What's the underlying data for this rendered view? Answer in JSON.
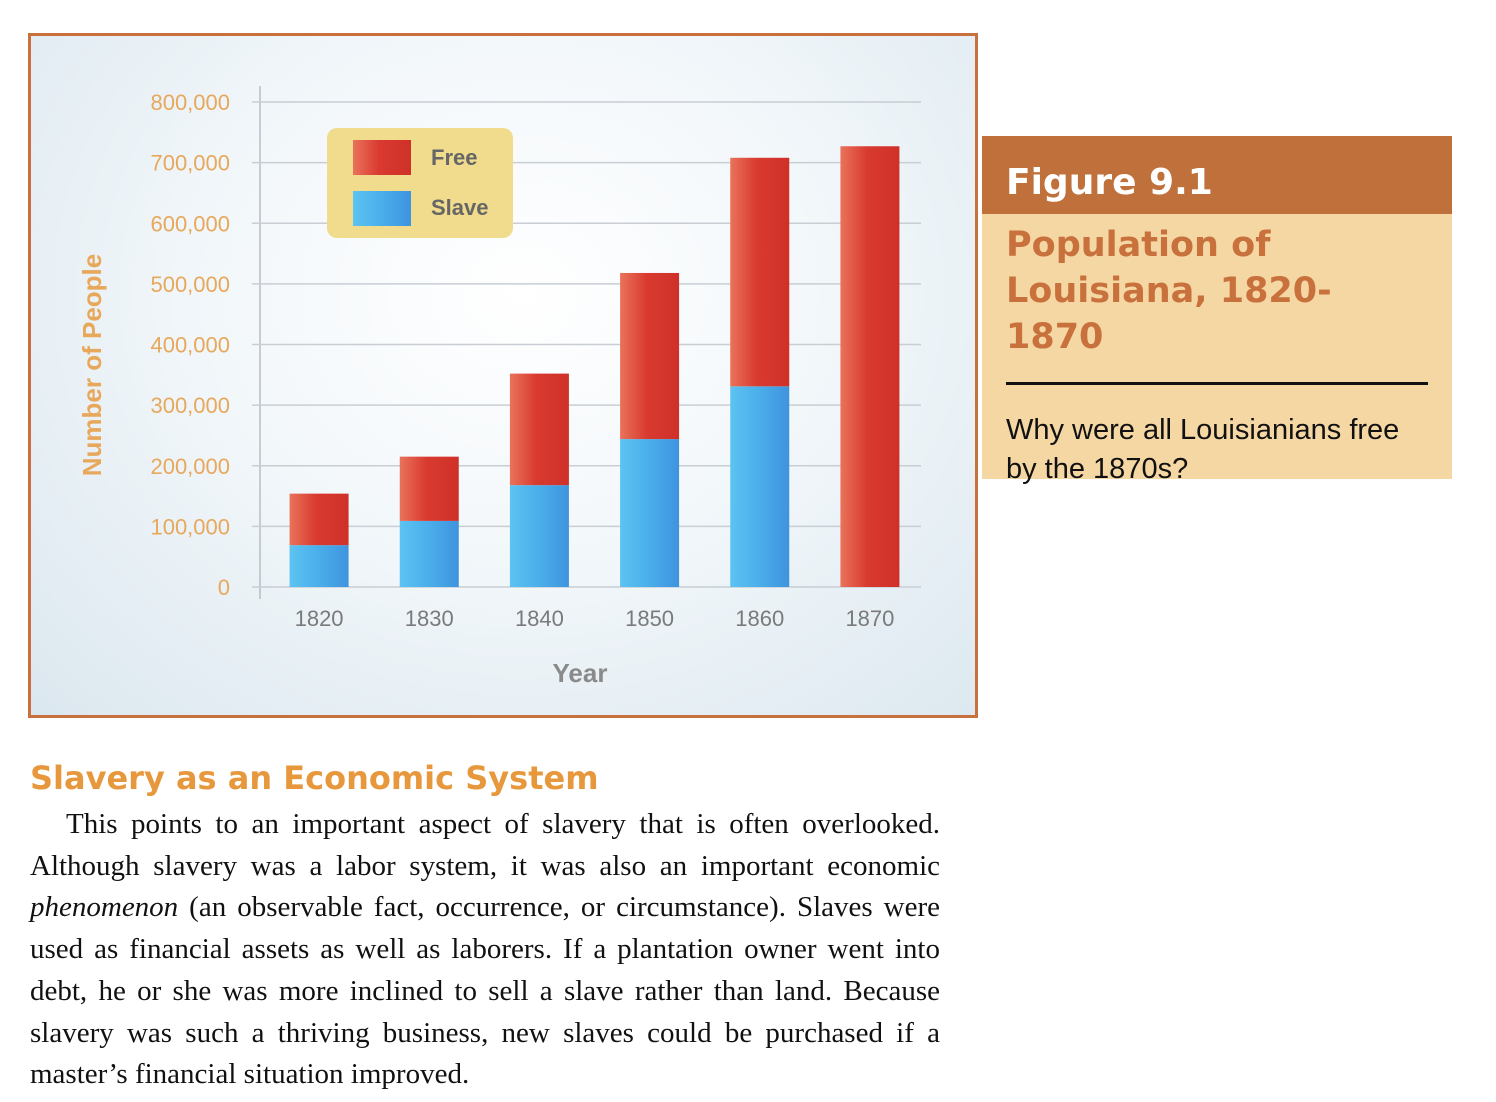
{
  "chart_data": {
    "type": "bar",
    "stacked": true,
    "categories": [
      "1820",
      "1830",
      "1840",
      "1850",
      "1860",
      "1870"
    ],
    "series": [
      {
        "name": "Slave",
        "values": [
          69000,
          109000,
          168000,
          244000,
          331000,
          0
        ],
        "color": "#4fb3ea"
      },
      {
        "name": "Free",
        "values": [
          85000,
          106000,
          184000,
          274000,
          377000,
          727000
        ],
        "color": "#d93a30"
      }
    ],
    "legend": [
      {
        "label": "Free",
        "color": "#d93a30"
      },
      {
        "label": "Slave",
        "color": "#4fb3ea"
      }
    ],
    "legend_position": "top-left",
    "xlabel": "Year",
    "ylabel": "Number of People",
    "ylim": [
      0,
      800000
    ],
    "yticks": [
      0,
      100000,
      200000,
      300000,
      400000,
      500000,
      600000,
      700000,
      800000
    ],
    "ytick_labels": [
      "0",
      "100,000",
      "200,000",
      "300,000",
      "400,000",
      "500,000",
      "600,000",
      "700,000",
      "800,000"
    ],
    "grid": true
  },
  "figure": {
    "label": "Figure 9.1",
    "title": "Population of Louisiana, 1820-1870",
    "question": "Why were all Louisianians free by the 1870s?"
  },
  "section": {
    "title": "Slavery as an Economic System",
    "para_part1": "This points to an important aspect of slavery that is often overlooked. Although slavery was a labor system, it was also an important economic ",
    "para_italic": "phenomenon",
    "para_part2": " (an observable fact, occurrence, or circumstance). Slaves were used as financial assets as well as laborers. If a plantation owner went into debt, he or she was more inclined to sell a slave rather than land. Because slavery was such a thriving business, new slaves could be purchased if a master’s financial situation improved."
  },
  "colors": {
    "axis_text": "#e8a85c",
    "tick_text": "#7a7a7a",
    "grid": "#c8ced4",
    "legend_bg": "#f0dc8c",
    "accent": "#c8713c"
  }
}
